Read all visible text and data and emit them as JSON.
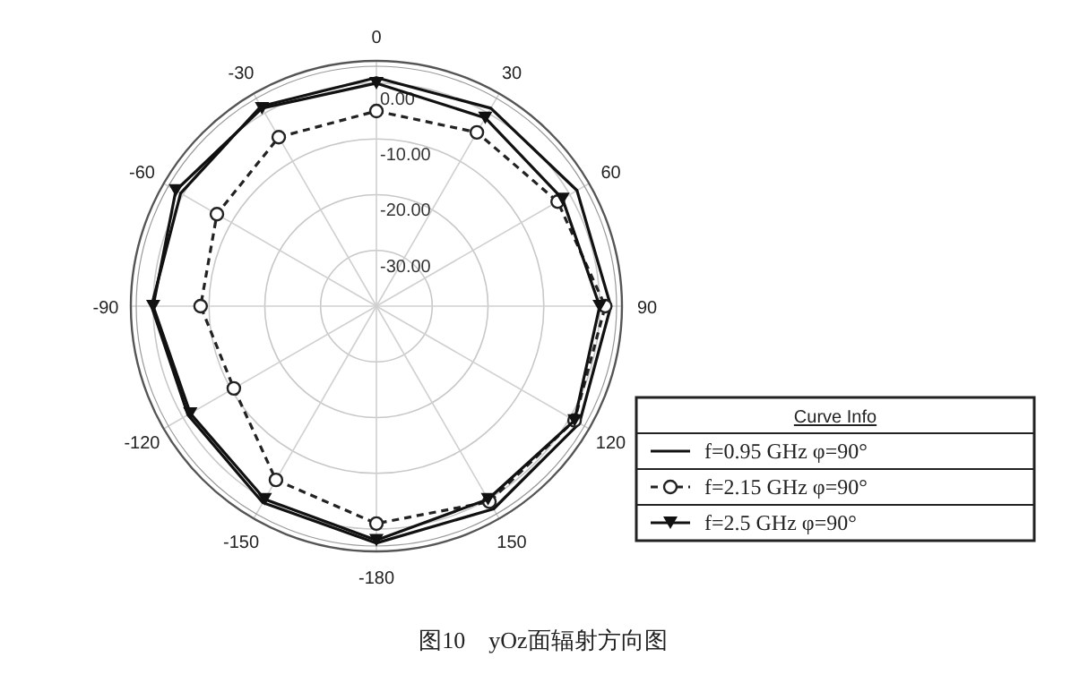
{
  "chart_data": {
    "type": "radar",
    "categories": [
      "0",
      "30",
      "60",
      "90",
      "120",
      "150",
      "-180",
      "-150",
      "-120",
      "-90",
      "-60",
      "-30"
    ],
    "series": [
      {
        "name": "f=0.95 GHz   φ=90°",
        "color": "#111111",
        "line_style": "solid",
        "marker": "none",
        "values": [
          1,
          1,
          1.5,
          2,
          2,
          2,
          2.5,
          0.7,
          -1,
          0.3,
          0.5,
          1.4
        ]
      },
      {
        "name": "f=2.15 GHz   φ=90°",
        "color": "#222222",
        "line_style": "dashed",
        "marker": "circle",
        "values": [
          -5,
          -4,
          -2.5,
          1,
          1,
          0.5,
          -1,
          -4,
          -10.5,
          -8.5,
          -7,
          -5
        ]
      },
      {
        "name": "f=2.5 GHz   φ=90°",
        "color": "#111111",
        "line_style": "solid",
        "marker": "triangle",
        "values": [
          0,
          -1,
          -1.5,
          0,
          1,
          0,
          2,
          0,
          -1.5,
          0,
          1.5,
          1
        ]
      }
    ],
    "ylim": [
      -40,
      4
    ],
    "yticks": [
      {
        "value": -30,
        "label": "-30.00"
      },
      {
        "value": -20,
        "label": "-20.00"
      },
      {
        "value": -10,
        "label": "-10.00"
      },
      {
        "value": 0,
        "label": "0.00"
      }
    ],
    "grid": true,
    "legend": "bottom right",
    "legend_title": "Curve Info",
    "annotations": [
      "图10　yOz面辐射方向图"
    ]
  }
}
